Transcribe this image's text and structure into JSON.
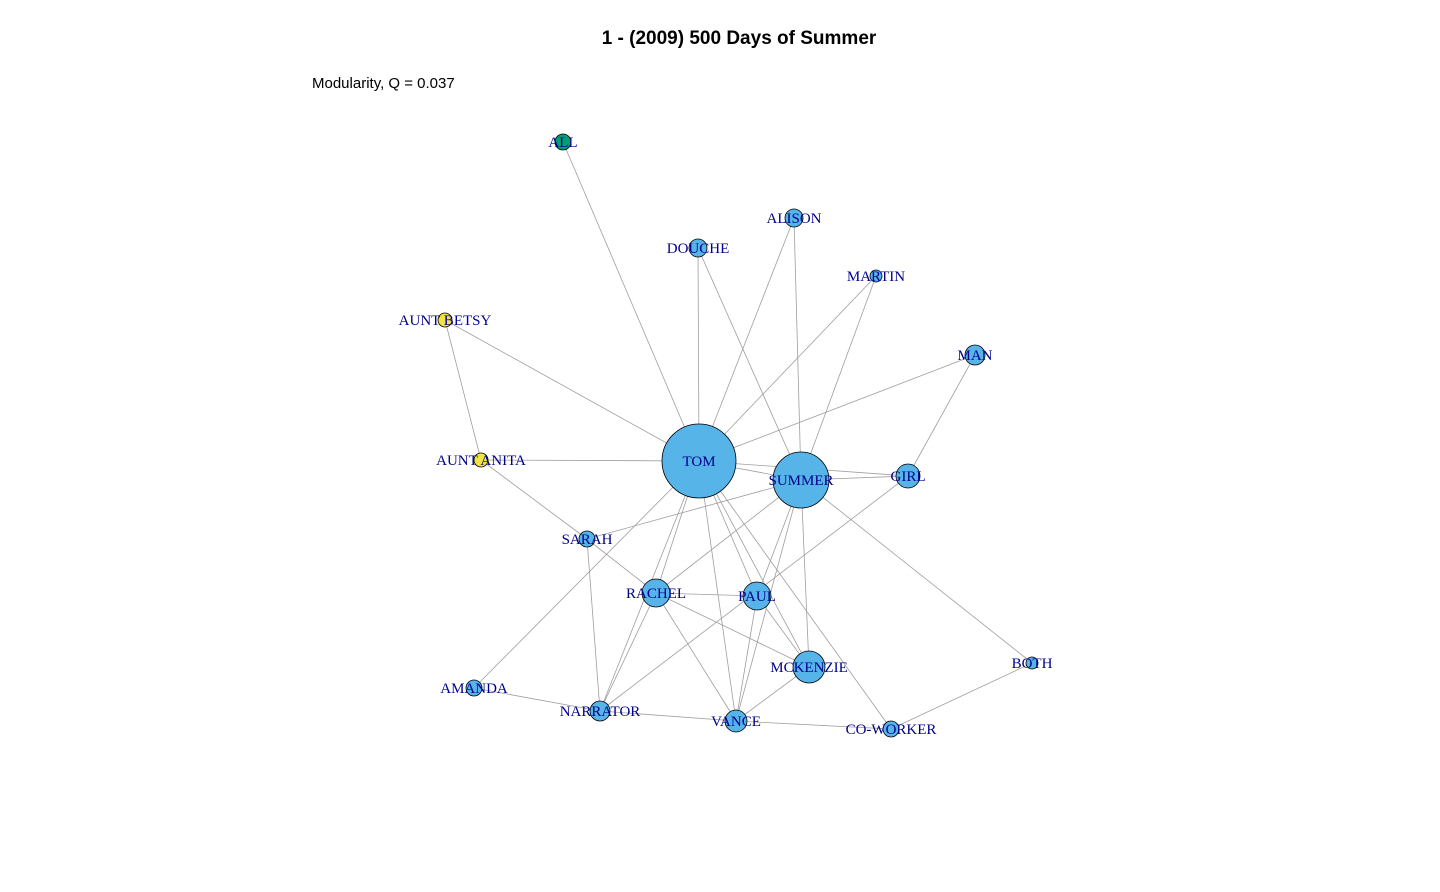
{
  "title": "1 - (2009) 500 Days of Summer",
  "subtitle": "Modularity, Q = 0.037",
  "colors": {
    "community_blue": "#56B4E9",
    "community_yellow": "#F0E442",
    "community_green": "#009E73",
    "label": "#00008B",
    "edge": "#9E9E9E",
    "node_border": "#000000"
  },
  "nodes": [
    {
      "id": "TOM",
      "label": "TOM",
      "community": "blue"
    },
    {
      "id": "SUMMER",
      "label": "SUMMER",
      "community": "blue"
    },
    {
      "id": "ALL",
      "label": "ALL",
      "community": "green"
    },
    {
      "id": "ALISON",
      "label": "ALISON",
      "community": "blue"
    },
    {
      "id": "DOUCHE",
      "label": "DOUCHE",
      "community": "blue"
    },
    {
      "id": "MARTIN",
      "label": "MARTIN",
      "community": "blue"
    },
    {
      "id": "AUNT_BETSY",
      "label": "AUNT BETSY",
      "community": "yellow"
    },
    {
      "id": "MAN",
      "label": "MAN",
      "community": "blue"
    },
    {
      "id": "AUNT_ANITA",
      "label": "AUNT ANITA",
      "community": "yellow"
    },
    {
      "id": "GIRL",
      "label": "GIRL",
      "community": "blue"
    },
    {
      "id": "SARAH",
      "label": "SARAH",
      "community": "blue"
    },
    {
      "id": "RACHEL",
      "label": "RACHEL",
      "community": "blue"
    },
    {
      "id": "PAUL",
      "label": "PAUL",
      "community": "blue"
    },
    {
      "id": "MCKENZIE",
      "label": "MCKENZIE",
      "community": "blue"
    },
    {
      "id": "BOTH",
      "label": "BOTH",
      "community": "blue"
    },
    {
      "id": "AMANDA",
      "label": "AMANDA",
      "community": "blue"
    },
    {
      "id": "NARRATOR",
      "label": "NARRATOR",
      "community": "blue"
    },
    {
      "id": "VANCE",
      "label": "VANCE",
      "community": "blue"
    },
    {
      "id": "CO_WORKER",
      "label": "CO-WORKER",
      "community": "blue"
    }
  ],
  "edges": [
    [
      "TOM",
      "ALL"
    ],
    [
      "TOM",
      "DOUCHE"
    ],
    [
      "TOM",
      "ALISON"
    ],
    [
      "TOM",
      "MARTIN"
    ],
    [
      "TOM",
      "AUNT_BETSY"
    ],
    [
      "TOM",
      "MAN"
    ],
    [
      "TOM",
      "AUNT_ANITA"
    ],
    [
      "TOM",
      "SUMMER"
    ],
    [
      "TOM",
      "GIRL"
    ],
    [
      "TOM",
      "RACHEL"
    ],
    [
      "TOM",
      "PAUL"
    ],
    [
      "TOM",
      "MCKENZIE"
    ],
    [
      "TOM",
      "VANCE"
    ],
    [
      "TOM",
      "CO_WORKER"
    ],
    [
      "TOM",
      "AMANDA"
    ],
    [
      "TOM",
      "NARRATOR"
    ],
    [
      "SUMMER",
      "DOUCHE"
    ],
    [
      "SUMMER",
      "ALISON"
    ],
    [
      "SUMMER",
      "MARTIN"
    ],
    [
      "SUMMER",
      "GIRL"
    ],
    [
      "SUMMER",
      "SARAH"
    ],
    [
      "SUMMER",
      "RACHEL"
    ],
    [
      "SUMMER",
      "PAUL"
    ],
    [
      "SUMMER",
      "MCKENZIE"
    ],
    [
      "SUMMER",
      "VANCE"
    ],
    [
      "SUMMER",
      "BOTH"
    ],
    [
      "AUNT_BETSY",
      "AUNT_ANITA"
    ],
    [
      "AUNT_ANITA",
      "SARAH"
    ],
    [
      "MAN",
      "GIRL"
    ],
    [
      "GIRL",
      "NARRATOR"
    ],
    [
      "SARAH",
      "NARRATOR"
    ],
    [
      "SARAH",
      "RACHEL"
    ],
    [
      "RACHEL",
      "PAUL"
    ],
    [
      "RACHEL",
      "MCKENZIE"
    ],
    [
      "RACHEL",
      "VANCE"
    ],
    [
      "RACHEL",
      "NARRATOR"
    ],
    [
      "PAUL",
      "VANCE"
    ],
    [
      "PAUL",
      "MCKENZIE"
    ],
    [
      "MCKENZIE",
      "VANCE"
    ],
    [
      "AMANDA",
      "NARRATOR"
    ],
    [
      "NARRATOR",
      "VANCE"
    ],
    [
      "VANCE",
      "CO_WORKER"
    ],
    [
      "CO_WORKER",
      "BOTH"
    ]
  ]
}
